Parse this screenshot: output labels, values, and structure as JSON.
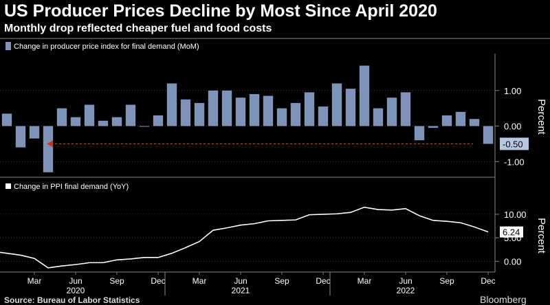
{
  "title": "US Producer Prices Decline by Most Since April 2020",
  "subtitle": "Monthly drop reflected cheaper fuel and food costs",
  "source": "Source: Bureau of Labor Statistics",
  "brand": "Bloomberg",
  "colors": {
    "bar": "#7f93b8",
    "line": "#ffffff",
    "arrow": "#c0392b",
    "grid": "#555555",
    "panel_sep": "#888888"
  },
  "chart_data": [
    {
      "type": "bar",
      "legend": "Change in producer price index for final demand (MoM)",
      "ylabel": "Percent",
      "ylim": [
        -1.4,
        2.0
      ],
      "yticks": [
        "1.00",
        "0.00",
        "-1.00"
      ],
      "ytick_values": [
        1,
        0,
        -1
      ],
      "last_value_label": "-0.50",
      "categories": [
        "Jan 2020",
        "Feb 2020",
        "Mar 2020",
        "Apr 2020",
        "May 2020",
        "Jun 2020",
        "Jul 2020",
        "Aug 2020",
        "Sep 2020",
        "Oct 2020",
        "Nov 2020",
        "Dec 2020",
        "Jan 2021",
        "Feb 2021",
        "Mar 2021",
        "Apr 2021",
        "May 2021",
        "Jun 2021",
        "Jul 2021",
        "Aug 2021",
        "Sep 2021",
        "Oct 2021",
        "Nov 2021",
        "Dec 2021",
        "Jan 2022",
        "Feb 2022",
        "Mar 2022",
        "Apr 2022",
        "May 2022",
        "Jun 2022",
        "Jul 2022",
        "Aug 2022",
        "Sep 2022",
        "Oct 2022",
        "Nov 2022",
        "Dec 2022"
      ],
      "values": [
        0.35,
        -0.6,
        -0.35,
        -1.3,
        0.5,
        0.25,
        0.6,
        0.15,
        0.25,
        0.6,
        0.0,
        0.3,
        1.2,
        0.75,
        0.65,
        1.0,
        1.0,
        0.8,
        0.9,
        0.85,
        0.5,
        0.65,
        0.95,
        0.55,
        1.2,
        1.05,
        1.7,
        0.5,
        0.8,
        0.95,
        -0.4,
        -0.05,
        0.3,
        0.4,
        0.2,
        -0.5
      ]
    },
    {
      "type": "line",
      "legend": "Change in PPI final demand (YoY)",
      "ylabel": "Percent",
      "ylim": [
        -2.0,
        13.5
      ],
      "yticks": [
        "10.00",
        "5.00",
        "0.00"
      ],
      "ytick_values": [
        10,
        5,
        0
      ],
      "last_value_label": "6.24",
      "categories": [
        "Jan 2020",
        "Feb 2020",
        "Mar 2020",
        "Apr 2020",
        "May 2020",
        "Jun 2020",
        "Jul 2020",
        "Aug 2020",
        "Sep 2020",
        "Oct 2020",
        "Nov 2020",
        "Dec 2020",
        "Jan 2021",
        "Feb 2021",
        "Mar 2021",
        "Apr 2021",
        "May 2021",
        "Jun 2021",
        "Jul 2021",
        "Aug 2021",
        "Sep 2021",
        "Oct 2021",
        "Nov 2021",
        "Dec 2021",
        "Jan 2022",
        "Feb 2022",
        "Mar 2022",
        "Apr 2022",
        "May 2022",
        "Jun 2022",
        "Jul 2022",
        "Aug 2022",
        "Sep 2022",
        "Oct 2022",
        "Nov 2022",
        "Dec 2022"
      ],
      "values": [
        1.9,
        1.3,
        0.6,
        -1.4,
        -1.0,
        -0.7,
        -0.3,
        -0.3,
        0.3,
        0.5,
        0.8,
        0.8,
        1.7,
        2.9,
        4.2,
        6.6,
        7.1,
        7.7,
        8.0,
        8.6,
        8.7,
        8.8,
        9.9,
        10.0,
        10.1,
        10.4,
        11.5,
        11.0,
        10.9,
        11.2,
        9.7,
        8.7,
        8.5,
        8.2,
        7.3,
        6.24
      ]
    }
  ],
  "x_axis": {
    "month_labels": [
      {
        "label": "Mar",
        "index": 2
      },
      {
        "label": "Jun",
        "index": 5
      },
      {
        "label": "Sep",
        "index": 8
      },
      {
        "label": "Dec",
        "index": 11
      },
      {
        "label": "Mar",
        "index": 14
      },
      {
        "label": "Jun",
        "index": 17
      },
      {
        "label": "Sep",
        "index": 20
      },
      {
        "label": "Dec",
        "index": 23
      },
      {
        "label": "Mar",
        "index": 26
      },
      {
        "label": "Jun",
        "index": 29
      },
      {
        "label": "Sep",
        "index": 32
      },
      {
        "label": "Dec",
        "index": 35
      }
    ],
    "year_labels": [
      {
        "label": "2020",
        "index": 5
      },
      {
        "label": "2021",
        "index": 17
      },
      {
        "label": "2022",
        "index": 29
      }
    ]
  }
}
